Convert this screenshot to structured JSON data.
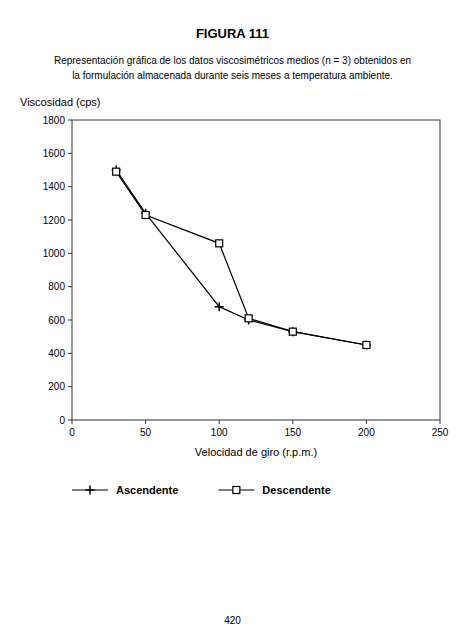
{
  "chart_data": {
    "type": "line",
    "title": "FIGURA 111",
    "subtitle": [
      "Representación gráfica de los datos viscosimétricos medios (n = 3) obtenidos en",
      "la formulación almacenada durante seis meses a temperatura ambiente."
    ],
    "annotations": [
      "420"
    ],
    "x_label": "Velocidad de giro (r.p.m.)",
    "y_label": "Viscosidad (cps)",
    "x": [
      30,
      50,
      100,
      120,
      150,
      200
    ],
    "series": [
      {
        "name": "Ascendente",
        "color": "#000000",
        "marker": "plus",
        "values": [
          1500,
          1240,
          680,
          600,
          530,
          450
        ]
      },
      {
        "name": "Descendente",
        "color": "#000000",
        "marker": "square",
        "values": [
          1490,
          1230,
          1060,
          610,
          530,
          450
        ]
      }
    ],
    "xlim": [
      0,
      250
    ],
    "xticks": [
      0,
      50,
      100,
      150,
      200,
      250
    ],
    "ylim": [
      0,
      1800
    ],
    "yticks": [
      0,
      200,
      400,
      600,
      800,
      1000,
      1200,
      1400,
      1600,
      1800
    ],
    "grid": false,
    "legend": "bottom"
  }
}
